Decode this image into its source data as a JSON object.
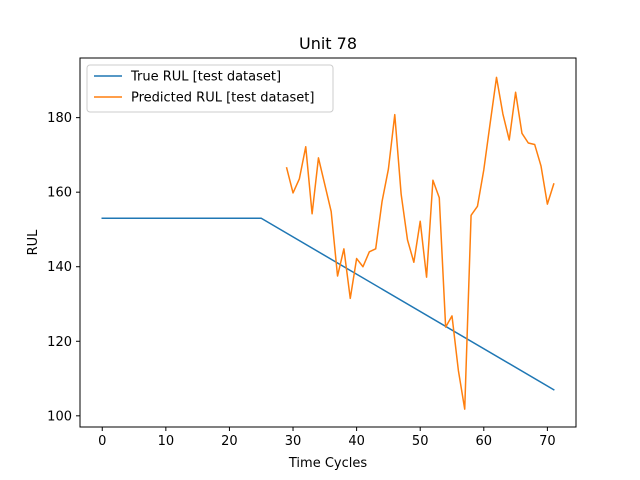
{
  "chart_data": {
    "type": "line",
    "title": "Unit 78",
    "xlabel": "Time Cycles",
    "ylabel": "RUL",
    "xlim": [
      -3.5,
      74.5
    ],
    "ylim": [
      97,
      196
    ],
    "xticks": [
      0,
      10,
      20,
      30,
      40,
      50,
      60,
      70
    ],
    "yticks": [
      100,
      120,
      140,
      160,
      180
    ],
    "grid": false,
    "legend_position": "top-left",
    "series": [
      {
        "name": "True RUL [test dataset]",
        "color": "#1f77b4",
        "x": [
          0,
          25,
          71
        ],
        "y": [
          153,
          153,
          107
        ]
      },
      {
        "name": "Predicted RUL [test dataset]",
        "color": "#ff7f0e",
        "x": [
          29,
          30,
          31,
          32,
          33,
          34,
          35,
          36,
          37,
          38,
          39,
          40,
          41,
          42,
          43,
          44,
          45,
          46,
          47,
          48,
          49,
          50,
          51,
          52,
          53,
          54,
          55,
          56,
          57,
          58,
          59,
          60,
          61,
          62,
          63,
          64,
          65,
          66,
          67,
          68,
          69,
          70,
          71
        ],
        "y": [
          166.5,
          159.8,
          163.6,
          172.2,
          154.2,
          169.2,
          162.0,
          154.8,
          137.5,
          144.8,
          131.5,
          142.2,
          140.0,
          144.0,
          144.8,
          157.5,
          166.2,
          180.8,
          159.5,
          147.2,
          141.2,
          152.2,
          137.2,
          163.2,
          158.5,
          123.8,
          126.8,
          112.2,
          101.8,
          153.8,
          156.2,
          166.0,
          178.5,
          190.8,
          181.0,
          174.0,
          186.8,
          175.8,
          173.2,
          172.8,
          167.0,
          156.8,
          162.2
        ]
      }
    ]
  }
}
